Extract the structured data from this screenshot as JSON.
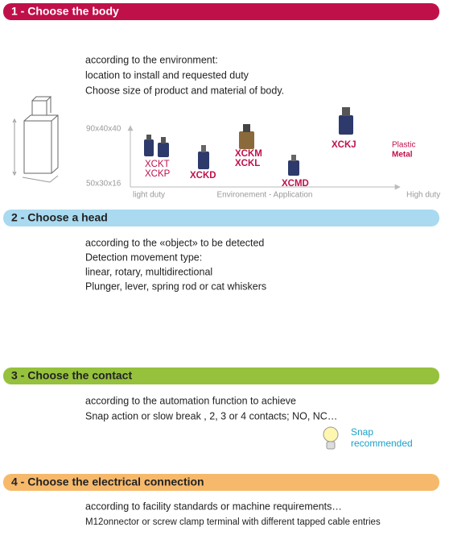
{
  "sections": [
    {
      "title": "1 - Choose the body",
      "lines": [
        "according to the environment:",
        "location  to install and requested duty",
        "Choose size of product and material of body."
      ],
      "diagram": {
        "size_labels": [
          "90x40x40",
          "50x30x16"
        ],
        "axis_labels": [
          "light duty",
          "Environement - Application",
          "High duty"
        ],
        "products": [
          "XCKT",
          "XCKP",
          "XCKD",
          "XCKM",
          "XCKL",
          "XCMD",
          "XCKJ"
        ],
        "materials": [
          "Plastic",
          "Metal"
        ]
      }
    },
    {
      "title": "2 - Choose a head",
      "lines": [
        "according to the «object» to be detected",
        "Detection movement type:",
        "linear, rotary, multidirectional",
        "Plunger, lever, spring rod or cat whiskers"
      ]
    },
    {
      "title": "3 - Choose the contact",
      "lines": [
        "according to the automation function to achieve",
        "Snap action or slow break , 2, 3 or 4 contacts; NO, NC…"
      ],
      "note": [
        "Snap",
        "recommended"
      ]
    },
    {
      "title": "4 - Choose the electrical connection",
      "lines": [
        "according to facility standards or machine requirements…",
        "M12onnector or screw clamp terminal with different tapped cable entries"
      ]
    }
  ]
}
